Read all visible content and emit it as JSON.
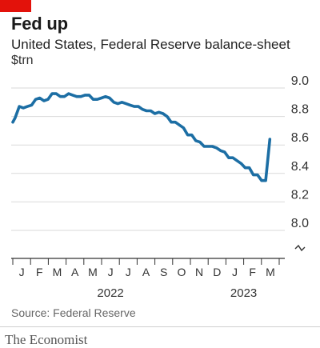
{
  "header": {
    "title": "Fed up",
    "subtitle": "United States, Federal Reserve balance-sheet",
    "unit": "$trn"
  },
  "footer": {
    "source": "Source: Federal Reserve",
    "brand": "The Economist"
  },
  "colors": {
    "line": "#1c6ea4",
    "accent_red": "#e3120b",
    "grid": "#d9d9d9",
    "axis": "#333333"
  },
  "chart_data": {
    "type": "line",
    "title": "Fed up",
    "subtitle": "United States, Federal Reserve balance-sheet",
    "ylabel": "$trn",
    "xlabel": "",
    "ylim": [
      8.0,
      9.0
    ],
    "axis_break_at_bottom": true,
    "yticks": [
      "9.0",
      "8.8",
      "8.6",
      "8.4",
      "8.2",
      "8.0"
    ],
    "ytick_values": [
      9.0,
      8.8,
      8.6,
      8.4,
      8.2,
      8.0
    ],
    "grid": true,
    "month_labels": [
      "J",
      "F",
      "M",
      "A",
      "M",
      "J",
      "J",
      "A",
      "S",
      "O",
      "N",
      "D",
      "J",
      "F",
      "M"
    ],
    "year_labels": [
      {
        "label": "2022",
        "month_index": 5.5
      },
      {
        "label": "2023",
        "month_index": 13.0
      }
    ],
    "series": [
      {
        "name": "",
        "x": [
          "2021-12-29",
          "2022-01-05",
          "2022-01-12",
          "2022-01-19",
          "2022-01-26",
          "2022-02-02",
          "2022-02-09",
          "2022-02-16",
          "2022-02-23",
          "2022-03-02",
          "2022-03-09",
          "2022-03-16",
          "2022-03-23",
          "2022-03-30",
          "2022-04-06",
          "2022-04-13",
          "2022-04-20",
          "2022-04-27",
          "2022-05-04",
          "2022-05-11",
          "2022-05-18",
          "2022-05-25",
          "2022-06-01",
          "2022-06-08",
          "2022-06-15",
          "2022-06-22",
          "2022-06-29",
          "2022-07-06",
          "2022-07-13",
          "2022-07-20",
          "2022-07-27",
          "2022-08-03",
          "2022-08-10",
          "2022-08-17",
          "2022-08-24",
          "2022-08-31",
          "2022-09-07",
          "2022-09-14",
          "2022-09-21",
          "2022-09-28",
          "2022-10-05",
          "2022-10-12",
          "2022-10-19",
          "2022-10-26",
          "2022-11-02",
          "2022-11-09",
          "2022-11-16",
          "2022-11-23",
          "2022-11-30",
          "2022-12-07",
          "2022-12-14",
          "2022-12-21",
          "2022-12-28",
          "2023-01-04",
          "2023-01-11",
          "2023-01-18",
          "2023-01-25",
          "2023-02-01",
          "2023-02-08",
          "2023-02-15",
          "2023-02-22",
          "2023-03-01",
          "2023-03-08",
          "2023-03-15"
        ],
        "values": [
          8.76,
          8.79,
          8.87,
          8.86,
          8.87,
          8.88,
          8.92,
          8.93,
          8.91,
          8.92,
          8.96,
          8.96,
          8.94,
          8.94,
          8.96,
          8.95,
          8.94,
          8.94,
          8.95,
          8.95,
          8.92,
          8.92,
          8.93,
          8.94,
          8.93,
          8.9,
          8.89,
          8.9,
          8.89,
          8.88,
          8.87,
          8.87,
          8.85,
          8.84,
          8.84,
          8.82,
          8.83,
          8.82,
          8.8,
          8.76,
          8.76,
          8.74,
          8.72,
          8.67,
          8.67,
          8.63,
          8.62,
          8.59,
          8.59,
          8.59,
          8.58,
          8.56,
          8.55,
          8.51,
          8.51,
          8.49,
          8.47,
          8.44,
          8.44,
          8.39,
          8.39,
          8.35,
          8.35,
          8.64
        ]
      }
    ]
  }
}
